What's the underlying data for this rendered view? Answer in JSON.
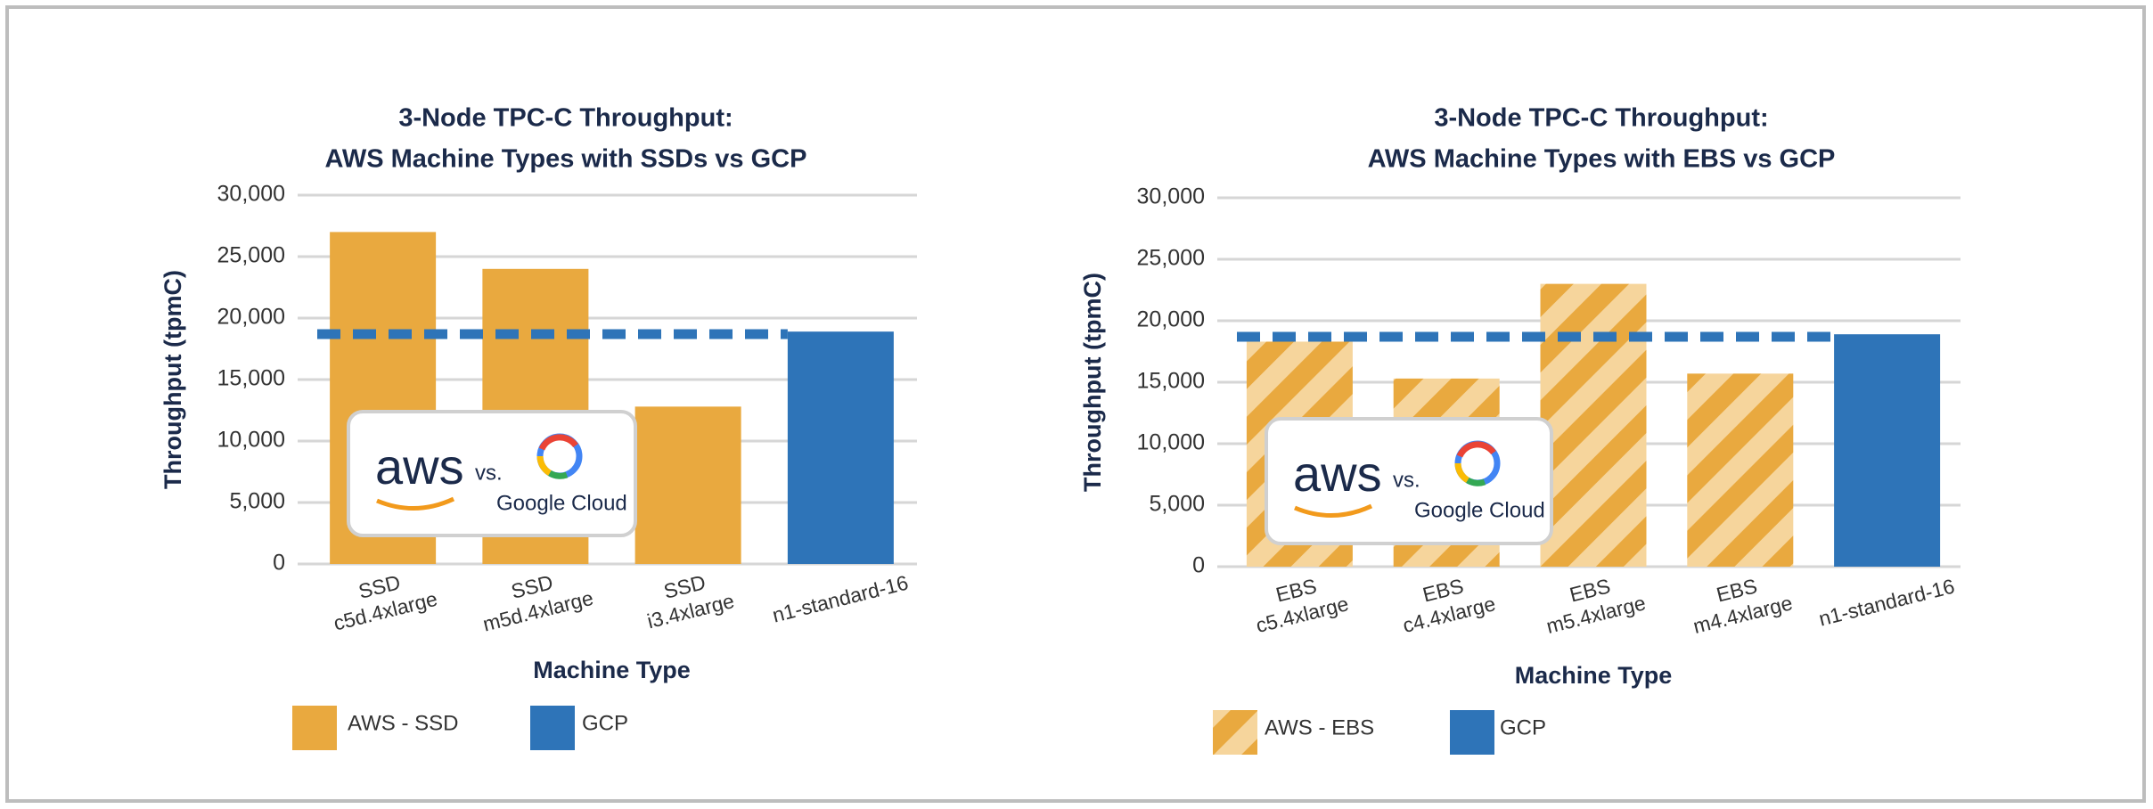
{
  "chart_data": [
    {
      "type": "bar",
      "title": [
        "3-Node TPC-C Throughput:",
        "AWS Machine Types with SSDs vs GCP"
      ],
      "x_label": "Machine Type",
      "y_label": "Throughput (tpmC)",
      "categories": [
        "SSD\nc5d.4xlarge",
        "SSD\nm5d.4xlarge",
        "SSD\ni3.4xlarge",
        "n1-standard-16"
      ],
      "series": [
        {
          "name": "AWS - SSD",
          "color": "#e9a93f",
          "pattern": "solid",
          "values": [
            27000,
            24000,
            12800,
            null
          ]
        },
        {
          "name": "GCP",
          "color": "#2e74b8",
          "pattern": "solid",
          "values": [
            null,
            null,
            null,
            18900
          ]
        }
      ],
      "reference_line": {
        "value": 18700,
        "color": "#2e74b8",
        "style": "dashed"
      },
      "ylim": [
        0,
        30000
      ],
      "yticks": [
        0,
        {
          "value": 5000,
          "label": "5,000"
        },
        {
          "value": 10000,
          "label": "10,000"
        },
        {
          "value": 15000,
          "label": "15,000"
        },
        {
          "value": 20000,
          "label": "20,000"
        },
        {
          "value": 25000,
          "label": "25,000"
        },
        {
          "value": 30000,
          "label": "30,000"
        }
      ],
      "grid": true,
      "badge": {
        "left": "aws",
        "middle": "vs.",
        "right": "Google Cloud"
      }
    },
    {
      "type": "bar",
      "title": [
        "3-Node TPC-C Throughput:",
        "AWS Machine Types with EBS vs GCP"
      ],
      "x_label": "Machine Type",
      "y_label": "Throughput (tpmC)",
      "categories": [
        "EBS\nc5.4xlarge",
        "EBS\nc4.4xlarge",
        "EBS\nm5.4xlarge",
        "EBS\nm4.4xlarge",
        "n1-standard-16"
      ],
      "series": [
        {
          "name": "AWS - EBS",
          "color": "#e9a93f",
          "pattern": "hatch",
          "values": [
            18300,
            15300,
            23000,
            15700,
            null
          ]
        },
        {
          "name": "GCP",
          "color": "#2e74b8",
          "pattern": "solid",
          "values": [
            null,
            null,
            null,
            null,
            18900
          ]
        }
      ],
      "reference_line": {
        "value": 18700,
        "color": "#2e74b8",
        "style": "dashed"
      },
      "ylim": [
        0,
        30000
      ],
      "yticks": [
        0,
        {
          "value": 5000,
          "label": "5,000"
        },
        {
          "value": 10000,
          "label": "10,000"
        },
        {
          "value": 15000,
          "label": "15,000"
        },
        {
          "value": 20000,
          "label": "20,000"
        },
        {
          "value": 25000,
          "label": "25,000"
        },
        {
          "value": 30000,
          "label": "30,000"
        }
      ],
      "grid": true,
      "badge": {
        "left": "aws",
        "middle": "vs.",
        "right": "Google Cloud"
      }
    }
  ]
}
